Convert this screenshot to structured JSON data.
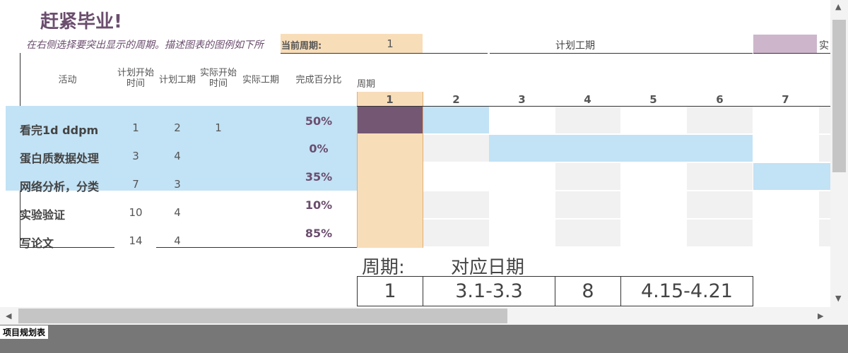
{
  "title": "赶紧毕业!",
  "hint": "在右侧选择要突出显示的周期。描述图表的图例如下所",
  "current_period": {
    "label": "当前周期:",
    "value": "1"
  },
  "legend": {
    "plan_label": "计划工期",
    "actual_label_partial": "实"
  },
  "headers": {
    "activity": "活动",
    "plan_start": "计划开始时间",
    "plan_duration": "计划工期",
    "actual_start": "实际开始时间",
    "actual_duration": "实际工期",
    "percent": "完成百分比",
    "period": "周期"
  },
  "period_numbers": [
    "1",
    "2",
    "3",
    "4",
    "5",
    "6",
    "7"
  ],
  "tasks": [
    {
      "name": "看完1d ddpm",
      "plan_start": "1",
      "plan_duration": "2",
      "actual_start": "1",
      "actual_duration": "",
      "percent": "50%"
    },
    {
      "name": "蛋白质数据处理",
      "plan_start": "3",
      "plan_duration": "4",
      "actual_start": "",
      "actual_duration": "",
      "percent": "0%"
    },
    {
      "name": "网络分析，分类",
      "plan_start": "7",
      "plan_duration": "3",
      "actual_start": "",
      "actual_duration": "",
      "percent": "35%"
    },
    {
      "name": "实验验证",
      "plan_start": "10",
      "plan_duration": "4",
      "actual_start": "",
      "actual_duration": "",
      "percent": "10%"
    },
    {
      "name": "写论文",
      "plan_start": "14",
      "plan_duration": "4",
      "actual_start": "",
      "actual_duration": "",
      "percent": "85%"
    }
  ],
  "reference": {
    "period_label": "周期:",
    "date_label": "对应日期",
    "rows": [
      {
        "period_a": "1",
        "date_a": "3.1-3.3",
        "period_b": "8",
        "date_b": "4.15-4.21"
      }
    ]
  },
  "sheet_tab": "项目规划表",
  "colors": {
    "title": "#6b4d6e",
    "highlight_row": "#c2e2f5",
    "current_period": "#f8ddb9",
    "actual_bar": "#745773",
    "legend_actual": "#cdb6cc",
    "grid_shade": "#f1f1f1"
  },
  "icons": {
    "scroll_up": "up-arrow-icon",
    "scroll_down": "down-arrow-icon",
    "scroll_left": "left-arrow-icon",
    "scroll_right": "right-arrow-icon"
  }
}
